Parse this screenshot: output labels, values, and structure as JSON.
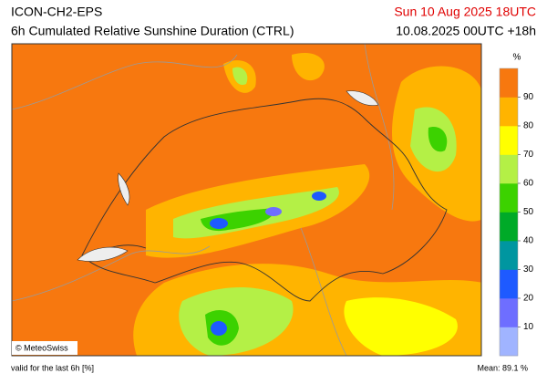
{
  "header": {
    "model": "ICON-CH2-EPS",
    "product": "6h Cumulated Relative Sunshine Duration (CTRL)",
    "valid_time": "Sun 10 Aug 2025 18UTC",
    "run": "10.08.2025 00UTC +18h"
  },
  "map": {
    "credit": "© MeteoSwiss"
  },
  "colorbar": {
    "unit": "%",
    "range": [
      0,
      100
    ],
    "ticks": [
      10,
      20,
      30,
      40,
      50,
      60,
      70,
      80,
      90
    ],
    "colors": [
      "#a0b4ff",
      "#6e6eff",
      "#1e5aff",
      "#0096a0",
      "#00aa28",
      "#3cd200",
      "#b4f046",
      "#ffff00",
      "#ffb400",
      "#f7780f"
    ]
  },
  "footer": {
    "note": "valid for the last 6h [%]",
    "mean": "Mean:  89.1 %"
  }
}
